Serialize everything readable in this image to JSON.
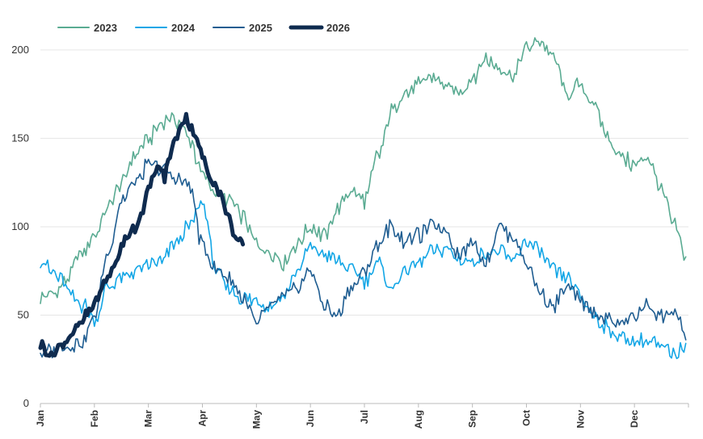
{
  "chart_data": {
    "type": "line",
    "title": "",
    "xlabel": "",
    "ylabel": "",
    "ylim": [
      0,
      210
    ],
    "yticks": [
      0,
      50,
      100,
      150,
      200
    ],
    "categories": [
      "Jan",
      "Feb",
      "Mar",
      "Apr",
      "May",
      "Jun",
      "Jul",
      "Aug",
      "Sep",
      "Oct",
      "Nov",
      "Dec"
    ],
    "legend_position": "top-left",
    "grid": true,
    "series": [
      {
        "name": "2023",
        "color": "#5aab92",
        "line_weight": "normal",
        "x": [
          0,
          0.25,
          0.5,
          0.75,
          1,
          1.25,
          1.5,
          1.75,
          2,
          2.25,
          2.4,
          2.6,
          2.75,
          3,
          3.25,
          3.5,
          3.75,
          4,
          4.25,
          4.5,
          4.75,
          5,
          5.25,
          5.5,
          5.75,
          6,
          6.25,
          6.5,
          6.75,
          7,
          7.25,
          7.5,
          7.75,
          8,
          8.25,
          8.5,
          8.75,
          9,
          9.25,
          9.5,
          9.75,
          10,
          10.25,
          10.5,
          10.75,
          11,
          11.25,
          11.5,
          11.75,
          11.95
        ],
        "values": [
          60,
          62,
          70,
          85,
          95,
          110,
          125,
          140,
          150,
          158,
          162,
          158,
          150,
          130,
          120,
          115,
          105,
          90,
          85,
          80,
          90,
          100,
          95,
          110,
          120,
          115,
          140,
          165,
          175,
          180,
          185,
          180,
          175,
          185,
          195,
          190,
          185,
          200,
          205,
          195,
          175,
          180,
          170,
          150,
          140,
          135,
          140,
          120,
          100,
          83
        ]
      },
      {
        "name": "2024",
        "color": "#13a6e6",
        "line_weight": "normal",
        "x": [
          0,
          0.2,
          0.4,
          0.6,
          0.8,
          1,
          1.25,
          1.5,
          1.75,
          2,
          2.25,
          2.5,
          2.75,
          3,
          3.25,
          3.5,
          3.75,
          4,
          4.25,
          4.5,
          4.75,
          5,
          5.25,
          5.5,
          5.75,
          6,
          6.25,
          6.5,
          6.75,
          7,
          7.25,
          7.5,
          7.75,
          8,
          8.25,
          8.5,
          8.75,
          9,
          9.25,
          9.5,
          9.75,
          10,
          10.25,
          10.5,
          10.75,
          11,
          11.25,
          11.5,
          11.75,
          11.95
        ],
        "values": [
          82,
          75,
          70,
          60,
          55,
          48,
          65,
          72,
          75,
          78,
          80,
          90,
          100,
          115,
          75,
          65,
          60,
          58,
          55,
          60,
          75,
          88,
          85,
          80,
          75,
          70,
          80,
          65,
          75,
          80,
          85,
          88,
          82,
          80,
          85,
          85,
          80,
          92,
          85,
          75,
          70,
          60,
          50,
          42,
          38,
          35,
          35,
          32,
          28,
          34
        ]
      },
      {
        "name": "2025",
        "color": "#1f5d91",
        "line_weight": "normal",
        "x": [
          0,
          0.25,
          0.5,
          0.75,
          1,
          1.25,
          1.5,
          1.75,
          2,
          2.25,
          2.5,
          2.75,
          3,
          3.25,
          3.5,
          3.75,
          4,
          4.25,
          4.5,
          4.75,
          5,
          5.25,
          5.5,
          5.75,
          6,
          6.25,
          6.5,
          6.75,
          7,
          7.25,
          7.5,
          7.75,
          8,
          8.25,
          8.5,
          8.75,
          9,
          9.25,
          9.5,
          9.75,
          10,
          10.25,
          10.5,
          10.75,
          11,
          11.25,
          11.5,
          11.75,
          11.95
        ],
        "values": [
          28,
          30,
          32,
          35,
          48,
          85,
          115,
          125,
          135,
          132,
          128,
          125,
          90,
          75,
          70,
          60,
          45,
          55,
          60,
          65,
          75,
          55,
          50,
          65,
          75,
          90,
          100,
          92,
          95,
          100,
          98,
          85,
          90,
          80,
          100,
          95,
          80,
          62,
          55,
          65,
          58,
          52,
          48,
          45,
          50,
          55,
          50,
          52,
          36
        ]
      },
      {
        "name": "2026",
        "color": "#0f2b4f",
        "line_weight": "bold",
        "x": [
          0,
          0.1,
          0.2,
          0.3,
          0.45,
          0.6,
          0.75,
          0.9,
          1,
          1.1,
          1.25,
          1.4,
          1.5,
          1.6,
          1.75,
          1.9,
          2,
          2.1,
          2.2,
          2.3,
          2.4,
          2.5,
          2.6,
          2.7,
          2.8,
          2.9,
          3,
          3.1,
          3.2,
          3.3,
          3.4,
          3.5,
          3.6,
          3.7,
          3.75
        ],
        "values": [
          34,
          30,
          26,
          31,
          35,
          40,
          45,
          52,
          58,
          62,
          72,
          80,
          88,
          95,
          100,
          110,
          120,
          130,
          133,
          128,
          140,
          150,
          158,
          162,
          156,
          148,
          139,
          132,
          125,
          120,
          112,
          105,
          95,
          90,
          90
        ]
      }
    ]
  }
}
